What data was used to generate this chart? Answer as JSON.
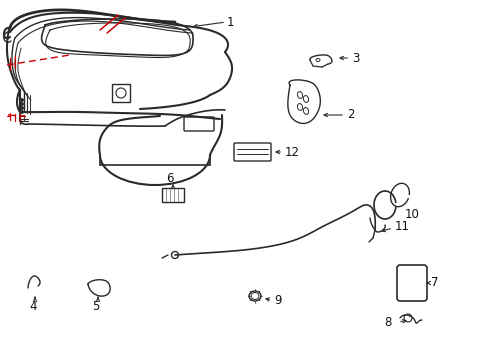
{
  "bg_color": "#ffffff",
  "line_color": "#2a2a2a",
  "red_color": "#cc0000",
  "label_color": "#111111",
  "figsize": [
    4.89,
    3.6
  ],
  "dpi": 100
}
